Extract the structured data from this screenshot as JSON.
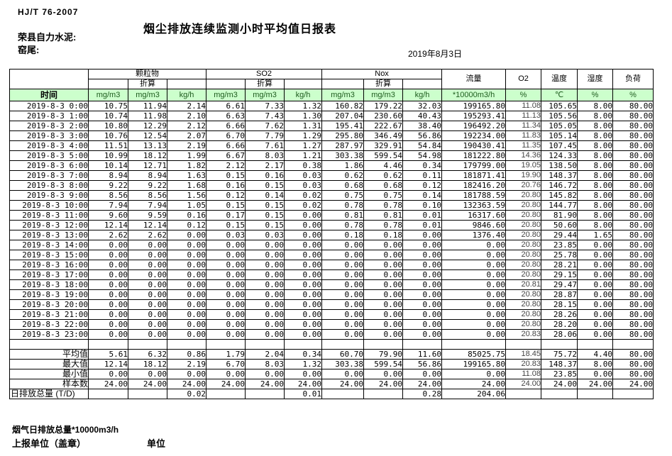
{
  "colors": {
    "header_fill": "#ccffcc",
    "unit_text": "#1f5c1f"
  },
  "header": {
    "standard": "HJ/T 76-2007",
    "title": "烟尘排放连续监测小时平均值日报表",
    "company": "荣县自力水泥:",
    "position": "窑尾:",
    "date": "2019年8月3日"
  },
  "table": {
    "time_header": "时间",
    "subheader": "折算",
    "groups": [
      {
        "label": "颗粒物"
      },
      {
        "label": "SO2"
      },
      {
        "label": "Nox"
      }
    ],
    "single_cols": [
      "流量",
      "O2",
      "温度",
      "湿度",
      "负荷"
    ],
    "units": [
      "mg/m3",
      "mg/m3",
      "kg/h",
      "mg/m3",
      "mg/m3",
      "kg/h",
      "mg/m3",
      "mg/m3",
      "kg/h",
      "*10000m3/h",
      "%",
      "℃",
      "%",
      "%"
    ],
    "rows": [
      {
        "time": "2019-8-3 0:00",
        "values": [
          "10.75",
          "11.94",
          "2.14",
          "6.61",
          "7.33",
          "1.32",
          "160.82",
          "179.22",
          "32.03",
          "199165.80",
          "11.08",
          "105.65",
          "8.00",
          "80.00"
        ]
      },
      {
        "time": "2019-8-3 1:00",
        "values": [
          "10.74",
          "11.98",
          "2.10",
          "6.63",
          "7.43",
          "1.30",
          "207.04",
          "230.60",
          "40.43",
          "195293.41",
          "11.13",
          "105.56",
          "8.00",
          "80.00"
        ]
      },
      {
        "time": "2019-8-3 2:00",
        "values": [
          "10.80",
          "12.29",
          "2.12",
          "6.66",
          "7.62",
          "1.31",
          "195.41",
          "222.67",
          "38.40",
          "196492.20",
          "11.34",
          "105.05",
          "8.00",
          "80.00"
        ]
      },
      {
        "time": "2019-8-3 3:00",
        "values": [
          "10.76",
          "12.54",
          "2.07",
          "6.70",
          "7.79",
          "1.29",
          "295.80",
          "346.49",
          "56.86",
          "192234.00",
          "11.83",
          "105.14",
          "8.00",
          "80.00"
        ]
      },
      {
        "time": "2019-8-3 4:00",
        "values": [
          "11.51",
          "13.13",
          "2.19",
          "6.66",
          "7.61",
          "1.27",
          "287.97",
          "329.91",
          "54.84",
          "190430.41",
          "11.35",
          "107.45",
          "8.00",
          "80.00"
        ]
      },
      {
        "time": "2019-8-3 5:00",
        "values": [
          "10.99",
          "18.12",
          "1.99",
          "6.67",
          "8.03",
          "1.21",
          "303.38",
          "599.54",
          "54.98",
          "181222.80",
          "14.36",
          "124.33",
          "8.00",
          "80.00"
        ]
      },
      {
        "time": "2019-8-3 6:00",
        "values": [
          "10.14",
          "12.71",
          "1.82",
          "2.12",
          "2.17",
          "0.38",
          "1.86",
          "4.46",
          "0.34",
          "179799.00",
          "19.05",
          "138.50",
          "8.00",
          "80.00"
        ]
      },
      {
        "time": "2019-8-3 7:00",
        "values": [
          "8.94",
          "8.94",
          "1.63",
          "0.15",
          "0.16",
          "0.03",
          "0.62",
          "0.62",
          "0.11",
          "181871.41",
          "19.90",
          "148.37",
          "8.00",
          "80.00"
        ]
      },
      {
        "time": "2019-8-3 8:00",
        "values": [
          "9.22",
          "9.22",
          "1.68",
          "0.16",
          "0.15",
          "0.03",
          "0.68",
          "0.68",
          "0.12",
          "182416.20",
          "20.76",
          "146.72",
          "8.00",
          "80.00"
        ]
      },
      {
        "time": "2019-8-3 9:00",
        "values": [
          "8.56",
          "8.56",
          "1.56",
          "0.12",
          "0.14",
          "0.02",
          "0.75",
          "0.75",
          "0.14",
          "181788.59",
          "20.80",
          "145.82",
          "8.00",
          "80.00"
        ]
      },
      {
        "time": "2019-8-3 10:00",
        "values": [
          "7.94",
          "7.94",
          "1.05",
          "0.15",
          "0.15",
          "0.02",
          "0.78",
          "0.78",
          "0.10",
          "132363.59",
          "20.80",
          "144.77",
          "8.00",
          "80.00"
        ]
      },
      {
        "time": "2019-8-3 11:00",
        "values": [
          "9.60",
          "9.59",
          "0.16",
          "0.17",
          "0.15",
          "0.00",
          "0.81",
          "0.81",
          "0.01",
          "16317.60",
          "20.80",
          "81.90",
          "8.00",
          "80.00"
        ]
      },
      {
        "time": "2019-8-3 12:00",
        "values": [
          "12.14",
          "12.14",
          "0.12",
          "0.15",
          "0.15",
          "0.00",
          "0.78",
          "0.78",
          "0.01",
          "9846.60",
          "20.80",
          "50.60",
          "8.00",
          "80.00"
        ]
      },
      {
        "time": "2019-8-3 13:00",
        "values": [
          "2.62",
          "2.62",
          "0.00",
          "0.03",
          "0.03",
          "0.00",
          "0.18",
          "0.18",
          "0.00",
          "1376.40",
          "20.80",
          "29.44",
          "1.65",
          "80.00"
        ]
      },
      {
        "time": "2019-8-3 14:00",
        "values": [
          "0.00",
          "0.00",
          "0.00",
          "0.00",
          "0.00",
          "0.00",
          "0.00",
          "0.00",
          "0.00",
          "0.00",
          "20.80",
          "23.85",
          "0.00",
          "80.00"
        ]
      },
      {
        "time": "2019-8-3 15:00",
        "values": [
          "0.00",
          "0.00",
          "0.00",
          "0.00",
          "0.00",
          "0.00",
          "0.00",
          "0.00",
          "0.00",
          "0.00",
          "20.80",
          "25.78",
          "0.00",
          "80.00"
        ]
      },
      {
        "time": "2019-8-3 16:00",
        "values": [
          "0.00",
          "0.00",
          "0.00",
          "0.00",
          "0.00",
          "0.00",
          "0.00",
          "0.00",
          "0.00",
          "0.00",
          "20.80",
          "28.21",
          "0.00",
          "80.00"
        ]
      },
      {
        "time": "2019-8-3 17:00",
        "values": [
          "0.00",
          "0.00",
          "0.00",
          "0.00",
          "0.00",
          "0.00",
          "0.00",
          "0.00",
          "0.00",
          "0.00",
          "20.80",
          "29.15",
          "0.00",
          "80.00"
        ]
      },
      {
        "time": "2019-8-3 18:00",
        "values": [
          "0.00",
          "0.00",
          "0.00",
          "0.00",
          "0.00",
          "0.00",
          "0.00",
          "0.00",
          "0.00",
          "0.00",
          "20.81",
          "29.47",
          "0.00",
          "80.00"
        ]
      },
      {
        "time": "2019-8-3 19:00",
        "values": [
          "0.00",
          "0.00",
          "0.00",
          "0.00",
          "0.00",
          "0.00",
          "0.00",
          "0.00",
          "0.00",
          "0.00",
          "20.80",
          "28.87",
          "0.00",
          "80.00"
        ]
      },
      {
        "time": "2019-8-3 20:00",
        "values": [
          "0.00",
          "0.00",
          "0.00",
          "0.00",
          "0.00",
          "0.00",
          "0.00",
          "0.00",
          "0.00",
          "0.00",
          "20.80",
          "28.15",
          "0.00",
          "80.00"
        ]
      },
      {
        "time": "2019-8-3 21:00",
        "values": [
          "0.00",
          "0.00",
          "0.00",
          "0.00",
          "0.00",
          "0.00",
          "0.00",
          "0.00",
          "0.00",
          "0.00",
          "20.80",
          "28.26",
          "0.00",
          "80.00"
        ]
      },
      {
        "time": "2019-8-3 22:00",
        "values": [
          "0.00",
          "0.00",
          "0.00",
          "0.00",
          "0.00",
          "0.00",
          "0.00",
          "0.00",
          "0.00",
          "0.00",
          "20.80",
          "28.20",
          "0.00",
          "80.00"
        ]
      },
      {
        "time": "2019-8-3 23:00",
        "values": [
          "0.00",
          "0.00",
          "0.00",
          "0.00",
          "0.00",
          "0.00",
          "0.00",
          "0.00",
          "0.00",
          "0.00",
          "20.83",
          "28.06",
          "0.00",
          "80.00"
        ]
      }
    ],
    "summary": [
      {
        "label": "平均值",
        "values": [
          "5.61",
          "6.32",
          "0.86",
          "1.79",
          "2.04",
          "0.34",
          "60.70",
          "79.90",
          "11.60",
          "85025.75",
          "18.45",
          "75.72",
          "4.40",
          "80.00"
        ]
      },
      {
        "label": "最大值",
        "values": [
          "12.14",
          "18.12",
          "2.19",
          "6.70",
          "8.03",
          "1.32",
          "303.38",
          "599.54",
          "56.86",
          "199165.80",
          "20.83",
          "148.37",
          "8.00",
          "80.00"
        ]
      },
      {
        "label": "最小值",
        "values": [
          "0.00",
          "0.00",
          "0.00",
          "0.00",
          "0.00",
          "0.00",
          "0.00",
          "0.00",
          "0.00",
          "0.00",
          "11.08",
          "23.85",
          "0.00",
          "80.00"
        ]
      },
      {
        "label": "样本数",
        "values": [
          "24.00",
          "24.00",
          "24.00",
          "24.00",
          "24.00",
          "24.00",
          "24.00",
          "24.00",
          "24.00",
          "24.00",
          "24.00",
          "24.00",
          "24.00",
          "24.00"
        ]
      },
      {
        "label": "日排放总量 (T/D)",
        "values": [
          "",
          "",
          "0.02",
          "",
          "",
          "0.01",
          "",
          "",
          "0.28",
          "204.06",
          "",
          "",
          "",
          ""
        ]
      }
    ]
  },
  "footer": {
    "total_flow_label": "烟气日排放总量*10000m3/h",
    "report_org_label": "上报单位（盖章）",
    "unit_label": "单位"
  }
}
